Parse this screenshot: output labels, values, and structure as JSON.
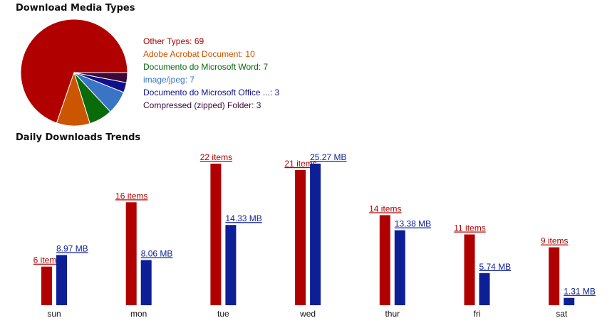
{
  "chart_data": [
    {
      "type": "pie",
      "title": "Download Media Types",
      "slices": [
        {
          "label": "Other Types",
          "value": 69,
          "color": "#b10000"
        },
        {
          "label": "Adobe Acrobat Document",
          "value": 10,
          "color": "#cc5500"
        },
        {
          "label": "Documento do Microsoft Word",
          "value": 7,
          "color": "#0a6b0a"
        },
        {
          "label": "image/jpeg",
          "value": 7,
          "color": "#3a74c4"
        },
        {
          "label": "Documento do Microsoft Office ...",
          "value": 3,
          "color": "#10108a"
        },
        {
          "label": "Compressed (zipped) Folder",
          "value": 3,
          "color": "#3a0a3a"
        }
      ]
    },
    {
      "type": "bar",
      "title": "Daily Downloads Trends",
      "categories": [
        "sun",
        "mon",
        "tue",
        "wed",
        "thur",
        "fri",
        "sat"
      ],
      "series": [
        {
          "values": [
            6,
            16,
            22,
            21,
            14,
            11,
            9
          ],
          "unit": "items",
          "color": "#b10000"
        },
        {
          "values": [
            8.97,
            8.06,
            14.33,
            25.27,
            13.38,
            5.74,
            1.31
          ],
          "unit": "MB",
          "color": "#0c1f96"
        }
      ]
    }
  ]
}
